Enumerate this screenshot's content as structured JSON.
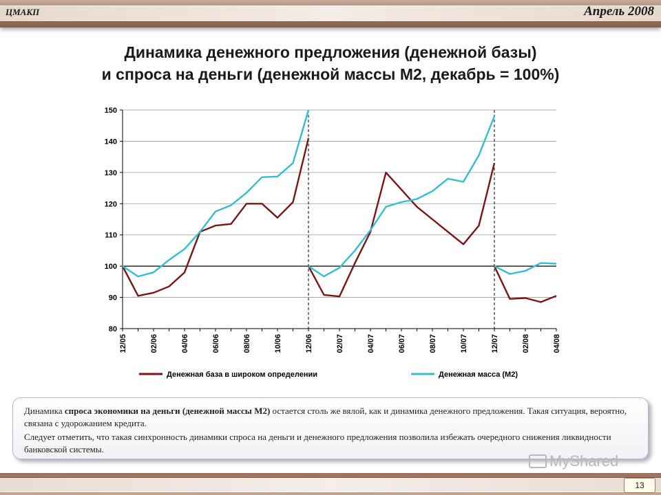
{
  "header": {
    "org": "ЦМАКП",
    "date": "Апрель 2008"
  },
  "title_lines": [
    "Динамика денежного предложения (денежной базы)",
    "и спроса на деньги (денежной массы М2, декабрь = 100%)"
  ],
  "chart_data": {
    "type": "line",
    "title": "Динамика денежного предложения (денежной базы) и спроса на деньги (денежной массы М2, декабрь = 100%)",
    "categories": [
      "12/05",
      "01/06",
      "02/06",
      "03/06",
      "04/06",
      "05/06",
      "06/06",
      "07/06",
      "08/06",
      "09/06",
      "10/06",
      "11/06",
      "12/06",
      "01/07",
      "02/07",
      "03/07",
      "04/07",
      "05/07",
      "06/07",
      "07/07",
      "08/07",
      "09/07",
      "10/07",
      "11/07",
      "12/07",
      "01/08",
      "02/08",
      "03/08",
      "04/08"
    ],
    "x_tick_labels": [
      "12/05",
      "02/06",
      "04/06",
      "06/06",
      "08/06",
      "10/06",
      "12/06",
      "02/07",
      "04/07",
      "06/07",
      "08/07",
      "10/07",
      "12/07",
      "02/08",
      "04/08"
    ],
    "ylim": [
      80,
      150
    ],
    "yticks": [
      80,
      90,
      100,
      110,
      120,
      130,
      140,
      150
    ],
    "reference_line": 100,
    "grid": true,
    "legend_position": "bottom",
    "series": [
      {
        "name": "Денежная база в широком определении",
        "color": "#7a1414",
        "segments": [
          {
            "start": 0,
            "values": [
              100,
              90.5,
              91.5,
              93.5,
              98,
              111,
              113,
              113.5,
              120,
              120,
              115.5,
              120.5,
              141
            ]
          },
          {
            "start": 12,
            "values": [
              100,
              90.8,
              90.3,
              101,
              111,
              130,
              124.5,
              119,
              115,
              111,
              107,
              113,
              133
            ]
          },
          {
            "start": 24,
            "values": [
              100,
              89.5,
              89.8,
              88.5,
              90.5
            ]
          }
        ]
      },
      {
        "name": "Денежная масса (М2)",
        "color": "#33bdd0",
        "segments": [
          {
            "start": 0,
            "values": [
              100,
              96.7,
              98,
              102,
              105.5,
              111,
              117.5,
              119.5,
              123.5,
              128.5,
              128.7,
              133,
              150
            ]
          },
          {
            "start": 12,
            "values": [
              100,
              96.7,
              99.5,
              105,
              111.5,
              119,
              120.5,
              121.5,
              124,
              128,
              127,
              135.5,
              148
            ]
          },
          {
            "start": 24,
            "values": [
              100,
              97.5,
              98.5,
              101,
              100.8
            ]
          }
        ]
      }
    ]
  },
  "note": {
    "p1_prefix": "Динамика ",
    "p1_bold": "спроса экономики на деньги (денежной массы М2)",
    "p1_rest": " остается столь же вялой, как и динамика денежного предложения. Такая ситуация, вероятно, связана с удорожанием кредита.",
    "p2": "Следует отметить, что такая синхронность динамики спроса на деньги и  денежного предложения позволила избежать очередного снижения ликвидности банковской системы."
  },
  "watermark": "MyShared",
  "page_number": "13"
}
